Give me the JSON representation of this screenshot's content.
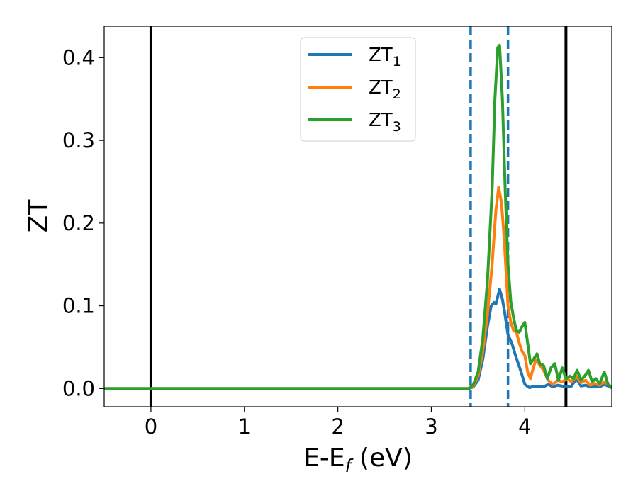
{
  "chart_data": {
    "type": "line",
    "title": "",
    "xlabel": "E-E",
    "xlabel_subscript": "f",
    "xlabel_unit": " (eV)",
    "ylabel": "ZT",
    "xlim": [
      -0.5,
      4.93
    ],
    "ylim": [
      -0.022,
      0.438
    ],
    "grid": false,
    "legend_position": "top-center",
    "x_ticks": [
      0,
      1,
      2,
      3,
      4
    ],
    "x_tick_labels": [
      "0",
      "1",
      "2",
      "3",
      "4"
    ],
    "y_ticks": [
      0.0,
      0.1,
      0.2,
      0.3,
      0.4
    ],
    "y_tick_labels": [
      "0.0",
      "0.1",
      "0.2",
      "0.3",
      "0.4"
    ],
    "vertical_lines": [
      {
        "x": 0.0,
        "style": "solid",
        "color": "#000000"
      },
      {
        "x": 4.44,
        "style": "solid",
        "color": "#000000"
      },
      {
        "x": 3.42,
        "style": "dashed",
        "color": "#1f77b4"
      },
      {
        "x": 3.82,
        "style": "dashed",
        "color": "#1f77b4"
      }
    ],
    "series": [
      {
        "name": "ZT",
        "subscript": "1",
        "color": "#1f77b4",
        "points": [
          [
            -0.5,
            0
          ],
          [
            3.4,
            0
          ],
          [
            3.45,
            0.002
          ],
          [
            3.5,
            0.01
          ],
          [
            3.55,
            0.035
          ],
          [
            3.6,
            0.075
          ],
          [
            3.64,
            0.1
          ],
          [
            3.67,
            0.104
          ],
          [
            3.69,
            0.102
          ],
          [
            3.73,
            0.12
          ],
          [
            3.76,
            0.108
          ],
          [
            3.78,
            0.095
          ],
          [
            3.8,
            0.08
          ],
          [
            3.82,
            0.065
          ],
          [
            3.84,
            0.06
          ],
          [
            3.86,
            0.055
          ],
          [
            3.9,
            0.04
          ],
          [
            3.93,
            0.03
          ],
          [
            3.96,
            0.02
          ],
          [
            4.0,
            0.005
          ],
          [
            4.05,
            0.001
          ],
          [
            4.1,
            0.003
          ],
          [
            4.15,
            0.002
          ],
          [
            4.2,
            0.002
          ],
          [
            4.25,
            0.005
          ],
          [
            4.3,
            0.002
          ],
          [
            4.35,
            0.004
          ],
          [
            4.4,
            0.003
          ],
          [
            4.45,
            0.002
          ],
          [
            4.5,
            0.003
          ],
          [
            4.55,
            0.012
          ],
          [
            4.6,
            0.003
          ],
          [
            4.65,
            0.004
          ],
          [
            4.7,
            0.002
          ],
          [
            4.75,
            0.003
          ],
          [
            4.8,
            0.002
          ],
          [
            4.85,
            0.005
          ],
          [
            4.93,
            0.001
          ]
        ]
      },
      {
        "name": "ZT",
        "subscript": "2",
        "color": "#ff7f0e",
        "points": [
          [
            -0.5,
            0
          ],
          [
            3.4,
            0
          ],
          [
            3.45,
            0.003
          ],
          [
            3.5,
            0.015
          ],
          [
            3.55,
            0.045
          ],
          [
            3.6,
            0.09
          ],
          [
            3.65,
            0.15
          ],
          [
            3.69,
            0.215
          ],
          [
            3.72,
            0.243
          ],
          [
            3.75,
            0.225
          ],
          [
            3.78,
            0.18
          ],
          [
            3.8,
            0.14
          ],
          [
            3.82,
            0.1
          ],
          [
            3.85,
            0.08
          ],
          [
            3.88,
            0.07
          ],
          [
            3.91,
            0.068
          ],
          [
            3.94,
            0.055
          ],
          [
            3.97,
            0.045
          ],
          [
            4.0,
            0.04
          ],
          [
            4.03,
            0.02
          ],
          [
            4.06,
            0.012
          ],
          [
            4.09,
            0.025
          ],
          [
            4.12,
            0.035
          ],
          [
            4.15,
            0.03
          ],
          [
            4.2,
            0.022
          ],
          [
            4.25,
            0.01
          ],
          [
            4.3,
            0.005
          ],
          [
            4.35,
            0.01
          ],
          [
            4.4,
            0.008
          ],
          [
            4.45,
            0.012
          ],
          [
            4.5,
            0.008
          ],
          [
            4.55,
            0.015
          ],
          [
            4.6,
            0.007
          ],
          [
            4.65,
            0.01
          ],
          [
            4.7,
            0.004
          ],
          [
            4.75,
            0.006
          ],
          [
            4.8,
            0.004
          ],
          [
            4.85,
            0.008
          ],
          [
            4.93,
            0.002
          ]
        ]
      },
      {
        "name": "ZT",
        "subscript": "3",
        "color": "#2ca02c",
        "points": [
          [
            -0.5,
            0
          ],
          [
            3.4,
            0
          ],
          [
            3.45,
            0.005
          ],
          [
            3.5,
            0.02
          ],
          [
            3.55,
            0.06
          ],
          [
            3.6,
            0.13
          ],
          [
            3.65,
            0.24
          ],
          [
            3.68,
            0.35
          ],
          [
            3.71,
            0.412
          ],
          [
            3.73,
            0.415
          ],
          [
            3.76,
            0.35
          ],
          [
            3.79,
            0.24
          ],
          [
            3.82,
            0.15
          ],
          [
            3.85,
            0.105
          ],
          [
            3.88,
            0.085
          ],
          [
            3.91,
            0.07
          ],
          [
            3.94,
            0.068
          ],
          [
            3.97,
            0.075
          ],
          [
            4.0,
            0.08
          ],
          [
            4.03,
            0.055
          ],
          [
            4.06,
            0.03
          ],
          [
            4.09,
            0.035
          ],
          [
            4.13,
            0.042
          ],
          [
            4.16,
            0.03
          ],
          [
            4.2,
            0.028
          ],
          [
            4.24,
            0.012
          ],
          [
            4.28,
            0.025
          ],
          [
            4.32,
            0.03
          ],
          [
            4.36,
            0.01
          ],
          [
            4.4,
            0.025
          ],
          [
            4.44,
            0.012
          ],
          [
            4.48,
            0.015
          ],
          [
            4.52,
            0.012
          ],
          [
            4.56,
            0.022
          ],
          [
            4.6,
            0.01
          ],
          [
            4.64,
            0.015
          ],
          [
            4.68,
            0.022
          ],
          [
            4.72,
            0.008
          ],
          [
            4.76,
            0.012
          ],
          [
            4.8,
            0.006
          ],
          [
            4.85,
            0.02
          ],
          [
            4.89,
            0.005
          ],
          [
            4.93,
            0.001
          ]
        ]
      }
    ]
  }
}
